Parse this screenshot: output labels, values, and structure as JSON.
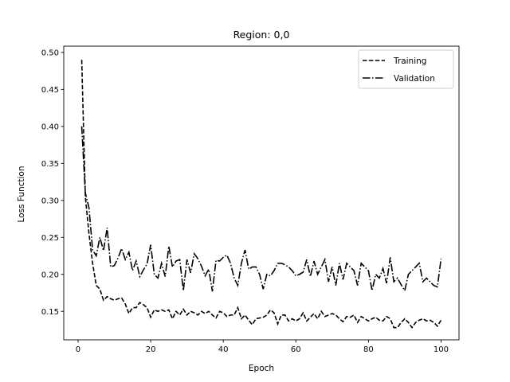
{
  "chart_data": {
    "type": "line",
    "title": "Region: 0,0",
    "xlabel": "Epoch",
    "ylabel": "Loss Function",
    "xlim": [
      -3.95,
      104.95
    ],
    "ylim": [
      0.1115,
      0.5085
    ],
    "xticks": [
      0,
      20,
      40,
      60,
      80,
      100
    ],
    "yticks": [
      0.15,
      0.2,
      0.25,
      0.3,
      0.35,
      0.4,
      0.45,
      0.5
    ],
    "ytick_labels": [
      "0.15",
      "0.20",
      "0.25",
      "0.30",
      "0.35",
      "0.40",
      "0.45",
      "0.50"
    ],
    "grid": false,
    "legend_position": "top-right",
    "series": [
      {
        "name": "Training",
        "style": "dashed",
        "color": "#000000",
        "x": [
          1,
          2,
          3,
          4,
          5,
          6,
          7,
          8,
          9,
          10,
          11,
          12,
          13,
          14,
          15,
          16,
          17,
          18,
          19,
          20,
          21,
          22,
          23,
          24,
          25,
          26,
          27,
          28,
          29,
          30,
          31,
          32,
          33,
          34,
          35,
          36,
          37,
          38,
          39,
          40,
          41,
          42,
          43,
          44,
          45,
          46,
          47,
          48,
          49,
          50,
          51,
          52,
          53,
          54,
          55,
          56,
          57,
          58,
          59,
          60,
          61,
          62,
          63,
          64,
          65,
          66,
          67,
          68,
          69,
          70,
          71,
          72,
          73,
          74,
          75,
          76,
          77,
          78,
          79,
          80,
          81,
          82,
          83,
          84,
          85,
          86,
          87,
          88,
          89,
          90,
          91,
          92,
          93,
          94,
          95,
          96,
          97,
          98,
          99,
          100
        ],
        "values": [
          0.49,
          0.305,
          0.255,
          0.215,
          0.185,
          0.18,
          0.165,
          0.17,
          0.167,
          0.165,
          0.167,
          0.168,
          0.16,
          0.147,
          0.155,
          0.155,
          0.162,
          0.159,
          0.155,
          0.142,
          0.152,
          0.15,
          0.152,
          0.15,
          0.152,
          0.14,
          0.15,
          0.145,
          0.153,
          0.145,
          0.15,
          0.148,
          0.145,
          0.15,
          0.147,
          0.15,
          0.145,
          0.141,
          0.15,
          0.148,
          0.143,
          0.145,
          0.145,
          0.155,
          0.14,
          0.145,
          0.138,
          0.132,
          0.14,
          0.141,
          0.142,
          0.145,
          0.152,
          0.148,
          0.133,
          0.145,
          0.145,
          0.137,
          0.14,
          0.137,
          0.14,
          0.148,
          0.137,
          0.142,
          0.147,
          0.14,
          0.15,
          0.143,
          0.145,
          0.147,
          0.145,
          0.14,
          0.136,
          0.143,
          0.142,
          0.145,
          0.135,
          0.143,
          0.14,
          0.137,
          0.14,
          0.142,
          0.138,
          0.137,
          0.143,
          0.14,
          0.128,
          0.128,
          0.135,
          0.14,
          0.135,
          0.128,
          0.135,
          0.138,
          0.14,
          0.137,
          0.138,
          0.135,
          0.13,
          0.138
        ]
      },
      {
        "name": "Validation",
        "style": "dashdot",
        "color": "#000000",
        "x": [
          1,
          2,
          3,
          4,
          5,
          6,
          7,
          8,
          9,
          10,
          11,
          12,
          13,
          14,
          15,
          16,
          17,
          18,
          19,
          20,
          21,
          22,
          23,
          24,
          25,
          26,
          27,
          28,
          29,
          30,
          31,
          32,
          33,
          34,
          35,
          36,
          37,
          38,
          39,
          40,
          41,
          42,
          43,
          44,
          45,
          46,
          47,
          48,
          49,
          50,
          51,
          52,
          53,
          54,
          55,
          56,
          57,
          58,
          59,
          60,
          61,
          62,
          63,
          64,
          65,
          66,
          67,
          68,
          69,
          70,
          71,
          72,
          73,
          74,
          75,
          76,
          77,
          78,
          79,
          80,
          81,
          82,
          83,
          84,
          85,
          86,
          87,
          88,
          89,
          90,
          91,
          92,
          93,
          94,
          95,
          96,
          97,
          98,
          99,
          100
        ],
        "values": [
          0.4,
          0.31,
          0.29,
          0.233,
          0.225,
          0.25,
          0.232,
          0.263,
          0.21,
          0.212,
          0.222,
          0.235,
          0.22,
          0.23,
          0.205,
          0.218,
          0.197,
          0.206,
          0.214,
          0.24,
          0.2,
          0.195,
          0.215,
          0.197,
          0.238,
          0.21,
          0.218,
          0.22,
          0.178,
          0.22,
          0.202,
          0.228,
          0.221,
          0.211,
          0.198,
          0.207,
          0.177,
          0.219,
          0.218,
          0.223,
          0.226,
          0.215,
          0.195,
          0.185,
          0.215,
          0.233,
          0.207,
          0.21,
          0.21,
          0.2,
          0.18,
          0.2,
          0.198,
          0.205,
          0.215,
          0.215,
          0.213,
          0.21,
          0.205,
          0.198,
          0.2,
          0.203,
          0.22,
          0.197,
          0.218,
          0.2,
          0.21,
          0.22,
          0.19,
          0.21,
          0.185,
          0.215,
          0.193,
          0.215,
          0.21,
          0.205,
          0.185,
          0.215,
          0.21,
          0.205,
          0.178,
          0.2,
          0.195,
          0.208,
          0.188,
          0.223,
          0.19,
          0.195,
          0.186,
          0.178,
          0.2,
          0.205,
          0.21,
          0.215,
          0.19,
          0.195,
          0.19,
          0.185,
          0.183,
          0.221
        ]
      }
    ]
  }
}
